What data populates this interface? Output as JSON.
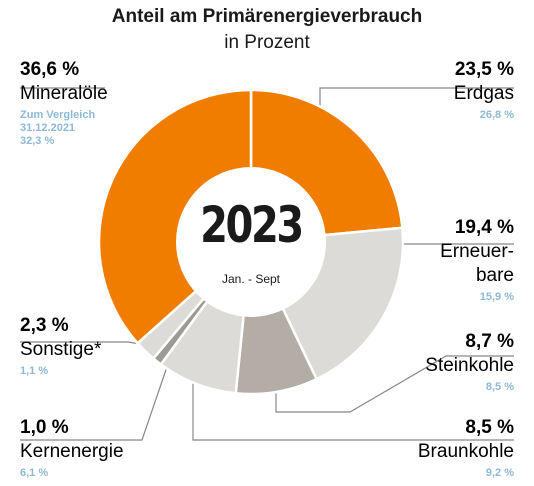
{
  "chart_data": {
    "type": "donut",
    "title": "Anteil am Primärenergieverbrauch",
    "subtitle": "in Prozent",
    "center_title": "2023",
    "center_subtitle": "Jan. - Sept",
    "annotation": "Zum Vergleich\n31.12.2021",
    "categories": [
      "Erdgas",
      "Erneuer-\nbare",
      "Steinkohle",
      "Braunkohle",
      "Kernenergie",
      "Sonstige*",
      "Mineralöle"
    ],
    "values": [
      23.5,
      19.4,
      8.7,
      8.5,
      1.0,
      2.3,
      36.6
    ],
    "value_labels": [
      "23,5 %",
      "19,4 %",
      "8,7 %",
      "8,5 %",
      "1,0 %",
      "2,3 %",
      "36,6 %"
    ],
    "comparison_labels": [
      "26,8 %",
      "15,9 %",
      "8,5 %",
      "9,2 %",
      "6,1 %",
      "1,1 %",
      "32,3 %"
    ],
    "colors": [
      "#f07d00",
      "#dcdbd7",
      "#b3ada5",
      "#dcdbd7",
      "#9d9993",
      "#dcdbd7",
      "#f07d00"
    ]
  }
}
